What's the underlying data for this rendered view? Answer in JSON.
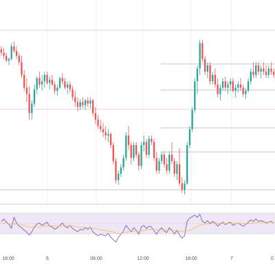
{
  "chart_data": {
    "type": "candlestick",
    "title": "",
    "xlabel": "",
    "ylabel": "",
    "x_ticks": [
      "18:00",
      "6",
      "06:00",
      "12:00",
      "18:00",
      "7",
      "0"
    ],
    "price_ylim": [
      0,
      100
    ],
    "candles": [
      [
        88,
        90,
        84,
        86
      ],
      [
        86,
        89,
        82,
        84
      ],
      [
        84,
        86,
        80,
        81
      ],
      [
        81,
        83,
        78,
        82
      ],
      [
        82,
        92,
        81,
        90
      ],
      [
        90,
        93,
        86,
        87
      ],
      [
        87,
        90,
        82,
        84
      ],
      [
        84,
        86,
        78,
        80
      ],
      [
        80,
        84,
        70,
        72
      ],
      [
        72,
        75,
        62,
        64
      ],
      [
        64,
        70,
        55,
        60
      ],
      [
        60,
        65,
        44,
        48
      ],
      [
        48,
        56,
        44,
        54
      ],
      [
        54,
        66,
        52,
        63
      ],
      [
        63,
        71,
        60,
        70
      ],
      [
        70,
        74,
        64,
        66
      ],
      [
        66,
        72,
        62,
        68
      ],
      [
        68,
        74,
        64,
        72
      ],
      [
        72,
        74,
        66,
        67
      ],
      [
        67,
        71,
        63,
        69
      ],
      [
        69,
        72,
        65,
        66
      ],
      [
        66,
        68,
        60,
        62
      ],
      [
        62,
        66,
        59,
        64
      ],
      [
        64,
        71,
        63,
        70
      ],
      [
        70,
        73,
        66,
        68
      ],
      [
        68,
        70,
        63,
        64
      ],
      [
        64,
        68,
        60,
        66
      ],
      [
        66,
        68,
        61,
        63
      ],
      [
        63,
        65,
        56,
        58
      ],
      [
        58,
        62,
        52,
        55
      ],
      [
        55,
        58,
        49,
        52
      ],
      [
        52,
        57,
        50,
        55
      ],
      [
        55,
        58,
        51,
        53
      ],
      [
        53,
        57,
        50,
        56
      ],
      [
        56,
        58,
        52,
        54
      ],
      [
        54,
        58,
        51,
        56
      ],
      [
        56,
        57,
        46,
        48
      ],
      [
        48,
        52,
        41,
        44
      ],
      [
        44,
        47,
        38,
        40
      ],
      [
        40,
        44,
        36,
        38
      ],
      [
        38,
        42,
        33,
        36
      ],
      [
        36,
        40,
        31,
        34
      ],
      [
        34,
        38,
        30,
        35
      ],
      [
        35,
        36,
        26,
        28
      ],
      [
        28,
        30,
        16,
        18
      ],
      [
        18,
        20,
        4,
        6
      ],
      [
        6,
        12,
        3,
        10
      ],
      [
        10,
        16,
        8,
        14
      ],
      [
        14,
        22,
        12,
        20
      ],
      [
        20,
        36,
        18,
        34
      ],
      [
        34,
        40,
        25,
        28
      ],
      [
        28,
        30,
        16,
        20
      ],
      [
        20,
        30,
        18,
        28
      ],
      [
        28,
        30,
        20,
        22
      ],
      [
        22,
        24,
        12,
        15
      ],
      [
        15,
        30,
        13,
        28
      ],
      [
        28,
        34,
        24,
        30
      ],
      [
        30,
        32,
        20,
        22
      ],
      [
        22,
        34,
        20,
        32
      ],
      [
        32,
        34,
        28,
        30
      ],
      [
        30,
        32,
        18,
        20
      ],
      [
        20,
        24,
        10,
        12
      ],
      [
        12,
        20,
        10,
        18
      ],
      [
        18,
        24,
        16,
        22
      ],
      [
        22,
        24,
        14,
        16
      ],
      [
        16,
        20,
        10,
        12
      ],
      [
        12,
        24,
        10,
        22
      ],
      [
        22,
        30,
        16,
        18
      ],
      [
        18,
        20,
        8,
        10
      ],
      [
        10,
        18,
        6,
        16
      ],
      [
        16,
        26,
        2,
        4
      ],
      [
        4,
        8,
        -2,
        0
      ],
      [
        0,
        6,
        -3,
        4
      ],
      [
        4,
        30,
        3,
        28
      ],
      [
        28,
        40,
        26,
        38
      ],
      [
        38,
        52,
        36,
        50
      ],
      [
        50,
        70,
        48,
        68
      ],
      [
        68,
        78,
        60,
        76
      ],
      [
        76,
        94,
        72,
        92
      ],
      [
        92,
        94,
        80,
        82
      ],
      [
        82,
        84,
        72,
        74
      ],
      [
        74,
        80,
        70,
        78
      ],
      [
        78,
        80,
        66,
        68
      ],
      [
        68,
        74,
        66,
        72
      ],
      [
        72,
        76,
        64,
        66
      ],
      [
        66,
        70,
        58,
        60
      ],
      [
        60,
        66,
        56,
        64
      ],
      [
        64,
        70,
        62,
        68
      ],
      [
        68,
        71,
        62,
        64
      ],
      [
        64,
        68,
        60,
        66
      ],
      [
        66,
        70,
        62,
        68
      ],
      [
        68,
        70,
        61,
        62
      ],
      [
        62,
        66,
        58,
        64
      ],
      [
        64,
        68,
        61,
        66
      ],
      [
        66,
        70,
        62,
        64
      ],
      [
        64,
        66,
        58,
        60
      ],
      [
        60,
        64,
        57,
        62
      ],
      [
        62,
        70,
        61,
        68
      ],
      [
        68,
        76,
        66,
        74
      ],
      [
        74,
        80,
        70,
        72
      ],
      [
        72,
        80,
        70,
        78
      ],
      [
        78,
        80,
        72,
        74
      ],
      [
        74,
        78,
        70,
        76
      ],
      [
        76,
        80,
        72,
        74
      ],
      [
        74,
        78,
        70,
        72
      ],
      [
        72,
        78,
        70,
        76
      ],
      [
        76,
        80,
        72,
        74
      ],
      [
        74,
        76,
        70,
        72
      ]
    ],
    "indicator": {
      "ylim": [
        0,
        100
      ],
      "series": [
        {
          "name": "",
          "color": "#7e57c2",
          "values": [
            62,
            68,
            60,
            55,
            45,
            72,
            58,
            50,
            46,
            40,
            35,
            28,
            36,
            48,
            55,
            58,
            52,
            56,
            60,
            50,
            48,
            42,
            46,
            52,
            58,
            50,
            46,
            52,
            44,
            40,
            36,
            42,
            40,
            46,
            42,
            48,
            36,
            30,
            26,
            30,
            28,
            26,
            32,
            22,
            16,
            10,
            22,
            30,
            38,
            52,
            44,
            36,
            46,
            40,
            30,
            48,
            52,
            44,
            50,
            48,
            38,
            30,
            40,
            46,
            38,
            34,
            46,
            40,
            30,
            40,
            28,
            20,
            26,
            62,
            70,
            74,
            78,
            72,
            80,
            62,
            58,
            64,
            56,
            62,
            58,
            50,
            56,
            60,
            54,
            58,
            60,
            52,
            56,
            58,
            54,
            50,
            54,
            60,
            66,
            62,
            68,
            62,
            64,
            62,
            58,
            60,
            62,
            58
          ]
        },
        {
          "name": "",
          "color": "#f5c34a",
          "values": [
            58,
            58,
            57,
            56,
            55,
            56,
            55,
            54,
            53,
            52,
            50,
            48,
            47,
            47,
            48,
            49,
            49,
            50,
            51,
            51,
            51,
            50,
            50,
            50,
            51,
            51,
            51,
            51,
            50,
            49,
            48,
            47,
            47,
            47,
            46,
            46,
            45,
            44,
            42,
            41,
            40,
            39,
            38,
            37,
            35,
            33,
            32,
            32,
            33,
            35,
            36,
            36,
            37,
            38,
            37,
            38,
            39,
            40,
            41,
            42,
            42,
            41,
            41,
            41,
            40,
            40,
            40,
            40,
            39,
            39,
            38,
            37,
            36,
            38,
            40,
            43,
            46,
            49,
            52,
            54,
            55,
            56,
            56,
            57,
            57,
            57,
            57,
            57,
            57,
            57,
            57,
            57,
            57,
            57,
            57,
            56,
            56,
            56,
            57,
            58,
            59,
            59,
            60,
            60,
            60,
            60,
            60,
            60
          ]
        }
      ]
    }
  }
}
